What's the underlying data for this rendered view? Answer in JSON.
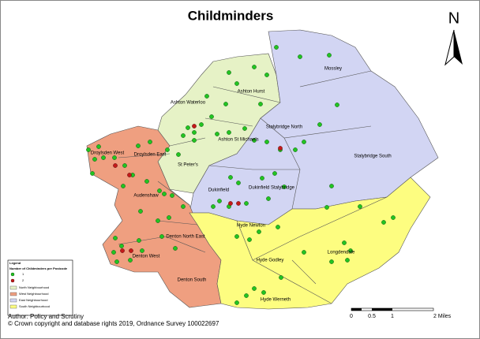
{
  "title": "Childminders",
  "north_arrow": "N",
  "wards": [
    "Mossley",
    "Ashton Hurst",
    "Ashton Waterloo",
    "Stalybridge North",
    "Stalybridge South",
    "Ashton St Michaels",
    "Droylsden West",
    "Droylsden East",
    "St Peter's",
    "Dukinfield",
    "Dukinfield Stalybridge",
    "Audenshaw",
    "Denton North East",
    "Denton West",
    "Denton South",
    "Hyde Newton",
    "Hyde Godley",
    "Longdendale",
    "Hyde Werneth"
  ],
  "legend": {
    "title": "Legend",
    "subtitle": "Number of Childminders per Postcode",
    "points": [
      "1",
      "2"
    ],
    "areas": [
      "North Neighbourhood",
      "West Neighbourhood",
      "East Neighbourhood",
      "South Neighbourhood"
    ]
  },
  "credits": [
    "Author: Policy and Scrutiny",
    "© Crown copyright and database rights 2019, Ordnance Survey 100022697"
  ],
  "scale": [
    "0",
    "0.5",
    "1",
    "2 Miles"
  ]
}
